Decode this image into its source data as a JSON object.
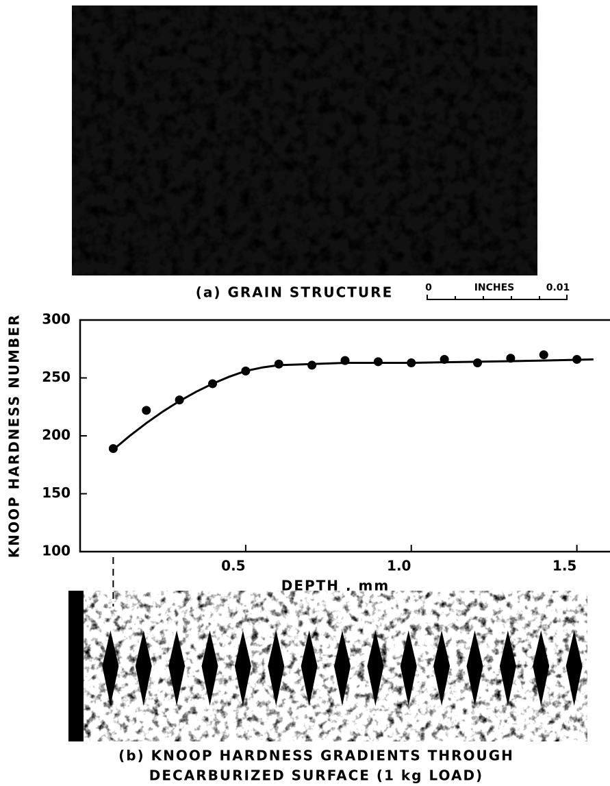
{
  "figure": {
    "caption_a": "(a) GRAIN STRUCTURE",
    "scale_start": "0",
    "scale_unit": "INCHES",
    "scale_end": "0.01",
    "caption_b": [
      "(b) KNOOP HARDNESS GRADIENTS THROUGH",
      "DECARBURIZED SURFACE (1 kg LOAD)"
    ]
  },
  "chart_data": {
    "type": "scatter",
    "x_label": "DEPTH , mm",
    "y_label": "KNOOP HARDNESS NUMBER",
    "xlim": [
      0,
      1.6
    ],
    "ylim": [
      100,
      300
    ],
    "xticks": [
      0.5,
      {
        "value": 1,
        "label": "1.0"
      },
      1.5
    ],
    "yticks": [
      100,
      150,
      200,
      250,
      300
    ],
    "color": "#000000",
    "series": [
      {
        "type": "scatter",
        "x": [
          0.1,
          0.2,
          0.3,
          0.4,
          0.5,
          0.6,
          0.7,
          0.8,
          0.9,
          1.0,
          1.1,
          1.2,
          1.3,
          1.4,
          1.5
        ],
        "values": [
          189,
          222,
          231,
          245,
          256,
          262,
          261,
          265,
          264,
          263,
          266,
          263,
          267,
          270,
          266
        ]
      },
      {
        "type": "line",
        "x": [
          0.1,
          0.15,
          0.2,
          0.25,
          0.3,
          0.35,
          0.4,
          0.45,
          0.5,
          0.55,
          0.6,
          0.7,
          0.8,
          1.0,
          1.2,
          1.4,
          1.55
        ],
        "values": [
          188,
          200,
          211,
          221,
          230,
          238,
          245,
          251,
          256,
          259,
          261,
          262,
          263,
          263,
          264,
          265,
          266
        ]
      }
    ]
  }
}
